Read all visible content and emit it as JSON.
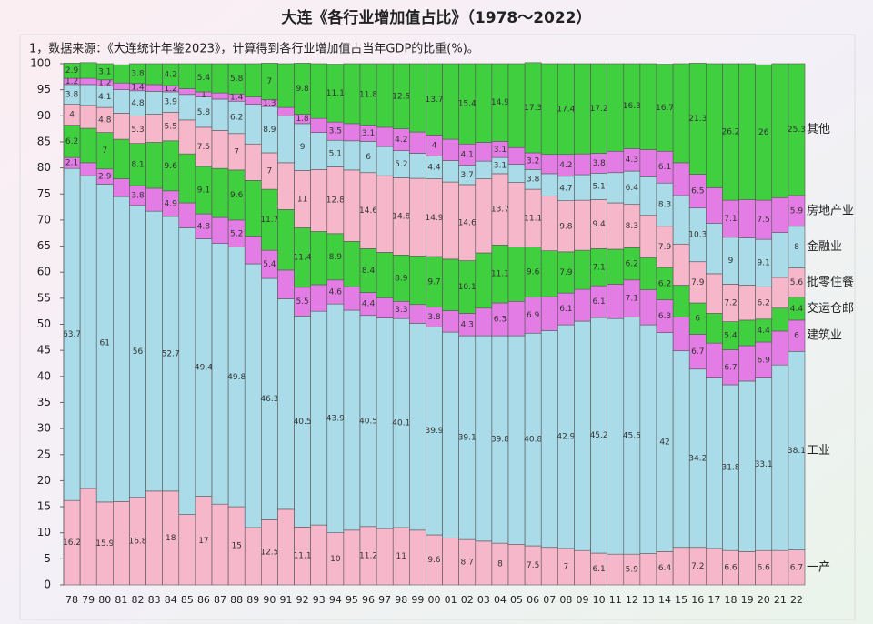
{
  "chart_data": {
    "type": "stacked-bar",
    "title": "大连《各行业增加值占比》（1978～2022）",
    "subtitle": "1，数据来源：《大连统计年鉴2023》，计算得到各行业增加值占当年GDP的比重(%)。",
    "categories": [
      "78",
      "79",
      "80",
      "81",
      "82",
      "83",
      "84",
      "85",
      "86",
      "87",
      "88",
      "89",
      "90",
      "91",
      "92",
      "93",
      "94",
      "95",
      "96",
      "97",
      "98",
      "99",
      "00",
      "01",
      "02",
      "03",
      "04",
      "05",
      "06",
      "07",
      "08",
      "09",
      "10",
      "11",
      "12",
      "13",
      "14",
      "15",
      "16",
      "17",
      "18",
      "19",
      "20",
      "21",
      "22"
    ],
    "ylim": [
      0,
      100
    ],
    "yticks": [
      0,
      5,
      10,
      15,
      20,
      25,
      30,
      35,
      40,
      45,
      50,
      55,
      60,
      65,
      70,
      75,
      80,
      85,
      90,
      95,
      100
    ],
    "data_label_step": 2,
    "series": [
      {
        "name": "一产",
        "color": "#f7b7cb",
        "values": [
          16.2,
          18.5,
          15.9,
          16.0,
          16.8,
          18.0,
          18.0,
          13.5,
          17.0,
          15.5,
          15.0,
          11.0,
          12.5,
          14.5,
          11.1,
          11.5,
          10.0,
          10.5,
          11.2,
          10.8,
          11.0,
          10.5,
          9.6,
          9.0,
          8.7,
          8.4,
          8.0,
          7.8,
          7.5,
          7.2,
          7.0,
          6.6,
          6.1,
          5.9,
          5.9,
          6.0,
          6.4,
          7.2,
          7.2,
          7.0,
          6.6,
          6.4,
          6.6,
          6.6,
          6.7
        ]
      },
      {
        "name": "工业",
        "color": "#a9dbe8",
        "values": [
          63.7,
          60.0,
          61.0,
          58.5,
          56.0,
          53.7,
          52.7,
          55.0,
          49.4,
          50.0,
          49.8,
          50.6,
          46.3,
          40.4,
          40.5,
          41.0,
          43.9,
          42.2,
          40.5,
          40.4,
          40.1,
          39.7,
          39.9,
          39.5,
          39.1,
          39.4,
          39.8,
          40.0,
          40.8,
          41.6,
          42.9,
          44.0,
          45.2,
          45.2,
          45.5,
          43.9,
          42.0,
          37.7,
          34.2,
          32.7,
          31.8,
          32.7,
          33.1,
          35.6,
          38.1
        ]
      },
      {
        "name": "建筑业",
        "color": "#e47ce6",
        "values": [
          2.1,
          2.5,
          2.9,
          3.4,
          3.8,
          4.4,
          4.9,
          4.8,
          4.8,
          5.0,
          5.2,
          5.3,
          5.4,
          5.5,
          5.5,
          5.1,
          4.6,
          4.5,
          4.4,
          3.9,
          3.3,
          3.6,
          3.8,
          4.1,
          4.3,
          5.3,
          6.3,
          6.6,
          6.9,
          6.5,
          6.1,
          6.1,
          6.1,
          6.6,
          7.1,
          6.7,
          6.3,
          6.5,
          6.7,
          6.7,
          6.7,
          6.8,
          6.9,
          6.5,
          6.0
        ]
      },
      {
        "name": "交运仓邮",
        "color": "#3fcf3f",
        "values": [
          6.2,
          6.6,
          7.0,
          7.6,
          8.1,
          8.8,
          9.6,
          9.4,
          9.1,
          9.4,
          9.6,
          10.7,
          11.7,
          11.6,
          11.4,
          10.2,
          8.9,
          8.7,
          8.4,
          8.7,
          8.9,
          9.3,
          9.7,
          9.9,
          10.1,
          10.6,
          11.1,
          10.4,
          9.6,
          8.8,
          7.9,
          7.5,
          7.1,
          6.7,
          6.2,
          6.2,
          6.2,
          6.1,
          6.0,
          5.7,
          5.4,
          4.9,
          4.4,
          4.4,
          4.4
        ]
      },
      {
        "name": "批零住餐",
        "color": "#f7b7cb",
        "values": [
          4.0,
          4.4,
          4.8,
          5.0,
          5.3,
          5.4,
          5.5,
          6.5,
          7.5,
          7.3,
          7.0,
          7.0,
          7.0,
          9.0,
          11.0,
          11.9,
          12.8,
          13.7,
          14.6,
          14.7,
          14.8,
          14.9,
          14.9,
          14.8,
          14.6,
          14.2,
          13.7,
          12.4,
          11.1,
          10.5,
          9.8,
          9.6,
          9.4,
          8.9,
          8.3,
          8.1,
          7.9,
          7.9,
          7.9,
          7.6,
          7.2,
          6.7,
          6.2,
          5.9,
          5.6
        ]
      },
      {
        "name": "金融业",
        "color": "#a9dbe8",
        "values": [
          3.8,
          4.0,
          4.1,
          4.5,
          4.8,
          4.4,
          3.9,
          4.9,
          5.8,
          6.0,
          6.2,
          7.6,
          8.9,
          9.0,
          9.0,
          7.1,
          5.1,
          5.6,
          6.0,
          5.6,
          5.2,
          4.8,
          4.4,
          4.1,
          3.7,
          3.4,
          3.1,
          3.5,
          3.8,
          4.3,
          4.7,
          4.9,
          5.1,
          5.8,
          6.4,
          7.4,
          8.3,
          9.3,
          10.3,
          9.7,
          9.0,
          9.1,
          9.1,
          8.6,
          8.0
        ]
      },
      {
        "name": "房地产业",
        "color": "#e47ce6",
        "values": [
          1.2,
          1.2,
          1.2,
          1.3,
          1.4,
          1.3,
          1.2,
          1.1,
          1.0,
          1.2,
          1.4,
          1.4,
          1.3,
          1.6,
          1.8,
          2.7,
          3.5,
          3.3,
          3.1,
          3.7,
          4.2,
          4.1,
          4.0,
          4.1,
          4.1,
          3.6,
          3.1,
          3.2,
          3.2,
          3.7,
          4.2,
          4.0,
          3.8,
          4.1,
          4.3,
          5.2,
          6.1,
          6.3,
          6.5,
          6.8,
          7.1,
          7.3,
          7.5,
          6.7,
          5.9
        ]
      },
      {
        "name": "其他",
        "color": "#3fcf3f",
        "values": [
          2.9,
          3.0,
          3.1,
          3.5,
          3.8,
          4.0,
          4.2,
          4.8,
          5.4,
          5.6,
          5.8,
          6.4,
          7.0,
          8.4,
          9.8,
          10.5,
          11.1,
          11.5,
          11.8,
          12.2,
          12.5,
          13.1,
          13.7,
          14.5,
          15.4,
          15.1,
          14.9,
          16.1,
          17.3,
          17.4,
          17.4,
          17.3,
          17.2,
          16.8,
          16.3,
          16.5,
          16.7,
          19.0,
          21.3,
          23.8,
          26.2,
          26.1,
          26.0,
          25.7,
          25.3
        ]
      }
    ]
  }
}
